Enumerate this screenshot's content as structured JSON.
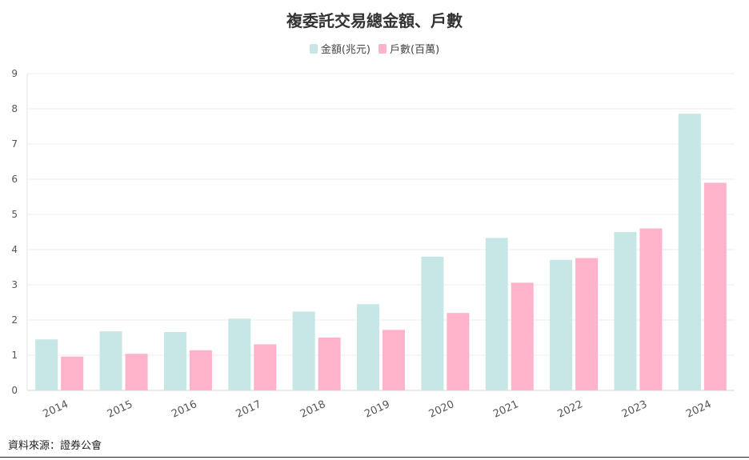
{
  "chart_data": {
    "type": "bar",
    "title": "複委託交易總金額、戶數",
    "categories": [
      "2014",
      "2015",
      "2016",
      "2017",
      "2018",
      "2019",
      "2020",
      "2021",
      "2022",
      "2023",
      "2024"
    ],
    "series": [
      {
        "name": "金額(兆元)",
        "color": "#c6e7e6",
        "values": [
          1.45,
          1.68,
          1.66,
          2.04,
          2.24,
          2.45,
          3.8,
          4.33,
          3.71,
          4.5,
          7.86
        ]
      },
      {
        "name": "戶數(百萬)",
        "color": "#ffb3cb",
        "values": [
          0.96,
          1.04,
          1.14,
          1.31,
          1.5,
          1.72,
          2.2,
          3.06,
          3.76,
          4.6,
          5.9
        ]
      }
    ],
    "ylim": [
      0,
      9
    ],
    "yticks": [
      "0",
      "1",
      "2",
      "3",
      "4",
      "5",
      "6",
      "7",
      "8",
      "9"
    ],
    "grid": true,
    "legend_position": "top-center"
  },
  "footer": {
    "source": "資料來源：證券公會"
  }
}
